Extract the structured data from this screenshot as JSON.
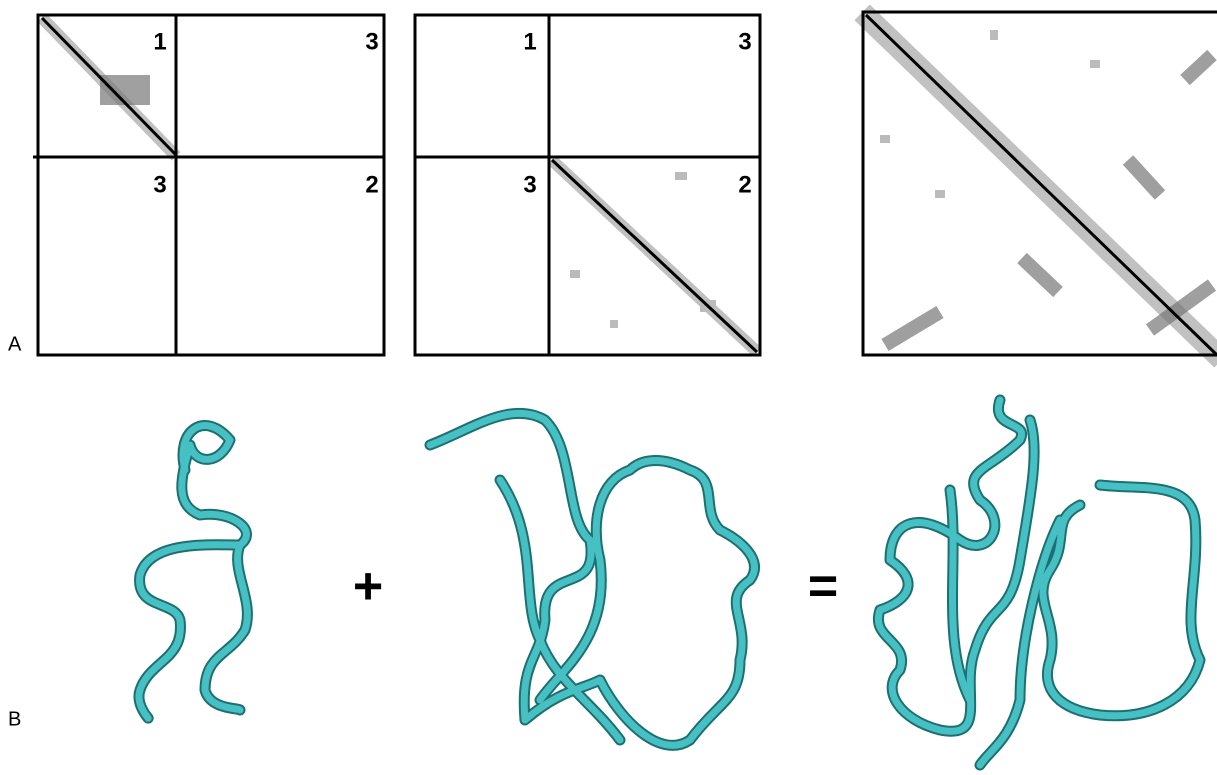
{
  "panel_a": {
    "label": "A",
    "maps": [
      {
        "quadrants": [
          "1",
          "3",
          "3",
          "2"
        ]
      },
      {
        "quadrants": [
          "1",
          "3",
          "3",
          "2"
        ]
      }
    ]
  },
  "panel_b": {
    "label": "B",
    "operators": [
      "+",
      "="
    ]
  }
}
